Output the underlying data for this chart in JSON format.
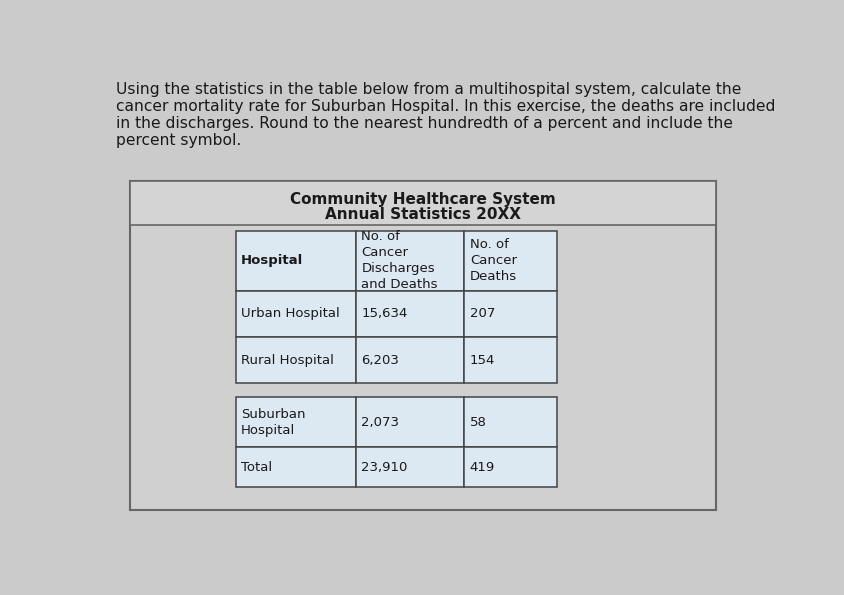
{
  "intro_text_lines": [
    "Using the statistics in the table below from a multihospital system, calculate the",
    "cancer mortality rate for Suburban Hospital. In this exercise, the deaths are included",
    "in the discharges. Round to the nearest hundredth of a percent and include the",
    "percent symbol."
  ],
  "table_title_line1": "Community Healthcare System",
  "table_title_line2": "Annual Statistics 20XX",
  "col_headers": [
    "Hospital",
    "No. of\nCancer\nDischarges\nand Deaths",
    "No. of\nCancer\nDeaths"
  ],
  "group1_rows": [
    [
      "Urban Hospital",
      "15,634",
      "207"
    ],
    [
      "Rural Hospital",
      "6,203",
      "154"
    ]
  ],
  "group2_rows": [
    [
      "Suburban\nHospital",
      "2,073",
      "58"
    ],
    [
      "Total",
      "23,910",
      "419"
    ]
  ],
  "bg_color": "#cbcbcb",
  "table_area_bg": "#c8c8c8",
  "cell_bg": "#dce8f0",
  "title_bg": "#dce8f0",
  "text_color": "#1a1a1a",
  "border_color": "#444444",
  "outer_border_color": "#666666"
}
